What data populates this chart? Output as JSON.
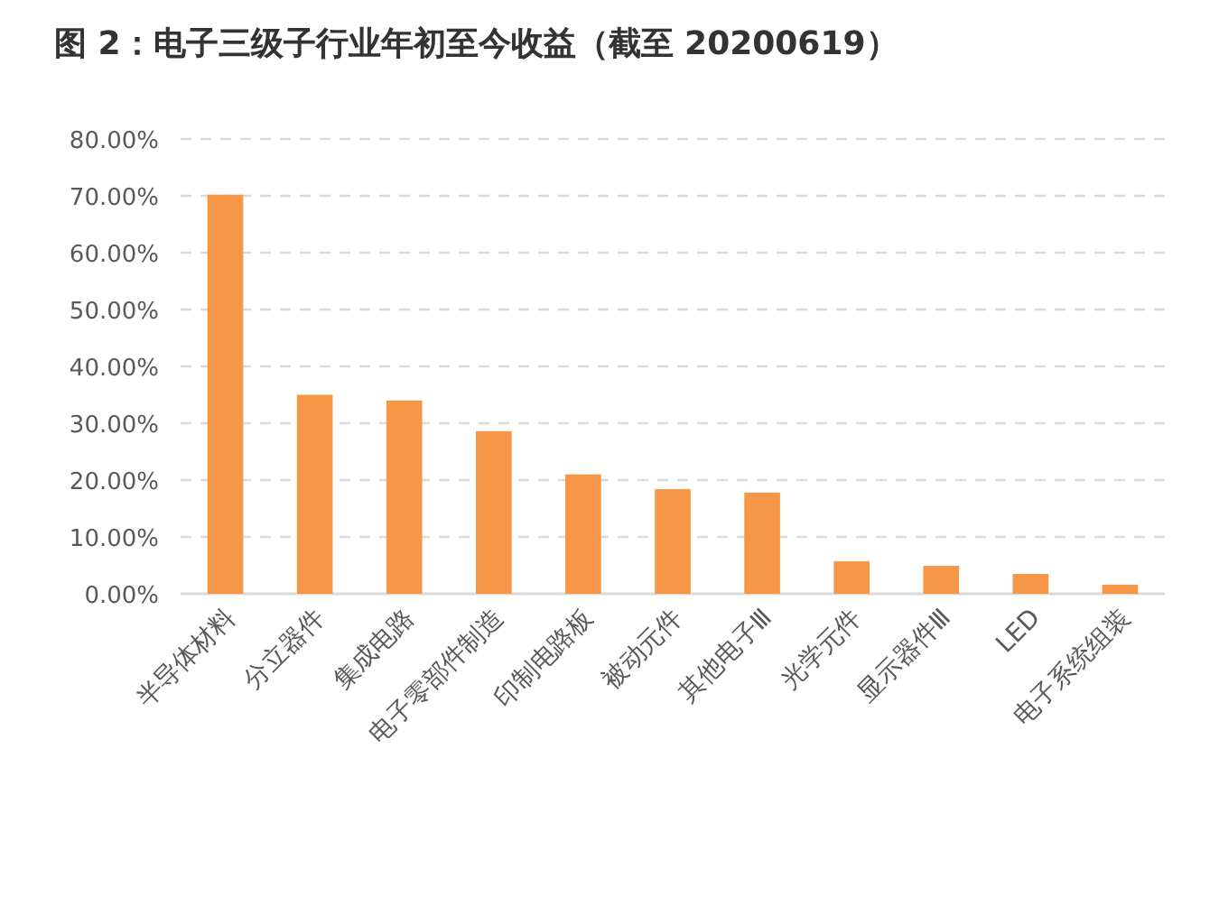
{
  "chart_data": {
    "type": "bar",
    "title": "图 2：电子三级子行业年初至今收益（截至 20200619）",
    "categories": [
      "半导体材料",
      "分立器件",
      "集成电路",
      "电子零部件制造",
      "印制电路板",
      "被动元件",
      "其他电子Ⅲ",
      "光学元件",
      "显示器件Ⅲ",
      "LED",
      "电子系统组装"
    ],
    "values": [
      70.2,
      35.0,
      34.0,
      28.6,
      21.0,
      18.4,
      17.8,
      5.7,
      4.9,
      3.5,
      1.6
    ],
    "color": "#f79646",
    "ylim": [
      0,
      80
    ],
    "yticks": [
      {
        "value": 0,
        "label": "0.00%"
      },
      {
        "value": 10,
        "label": "10.00%"
      },
      {
        "value": 20,
        "label": "20.00%"
      },
      {
        "value": 30,
        "label": "30.00%"
      },
      {
        "value": 40,
        "label": "40.00%"
      },
      {
        "value": 50,
        "label": "50.00%"
      },
      {
        "value": 60,
        "label": "60.00%"
      },
      {
        "value": 70,
        "label": "70.00%"
      },
      {
        "value": 80,
        "label": "80.00%"
      }
    ],
    "grid": "y"
  }
}
